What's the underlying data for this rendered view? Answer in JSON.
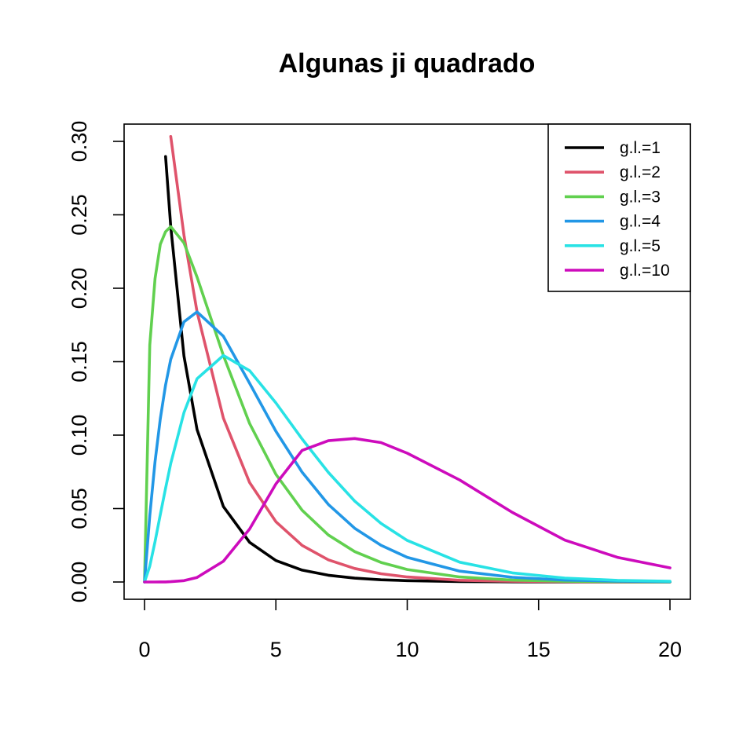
{
  "chart_data": {
    "type": "line",
    "title": "Algunas ji quadrado",
    "xlabel": "",
    "ylabel": "",
    "xlim": [
      0,
      20
    ],
    "ylim": [
      0,
      0.3
    ],
    "x_ticks": [
      0,
      5,
      10,
      15,
      20
    ],
    "x_tick_labels": [
      "0",
      "5",
      "10",
      "15",
      "20"
    ],
    "y_ticks": [
      0,
      0.05,
      0.1,
      0.15,
      0.2,
      0.25,
      0.3
    ],
    "y_tick_labels": [
      "0.00",
      "0.05",
      "0.10",
      "0.15",
      "0.20",
      "0.25",
      "0.30"
    ],
    "grid": false,
    "legend_position": "top-right",
    "x": [
      0,
      0.2,
      0.4,
      0.6,
      0.8,
      1,
      1.5,
      2,
      3,
      4,
      5,
      6,
      7,
      8,
      9,
      10,
      12,
      14,
      16,
      18,
      20
    ],
    "series": [
      {
        "name": "g.l.=1",
        "color": "#000000",
        "values": [
          null,
          null,
          null,
          null,
          0.2897,
          0.242,
          0.1539,
          0.1038,
          0.0514,
          0.027,
          0.0146,
          0.0081,
          0.0046,
          0.0026,
          0.0015,
          0.0009,
          0.0003,
          0.0001,
          4e-05,
          1e-05,
          4e-06
        ]
      },
      {
        "name": "g.l.=2",
        "color": "#DF536B",
        "values": [
          null,
          null,
          null,
          null,
          null,
          0.3033,
          0.2362,
          0.1839,
          0.1116,
          0.0677,
          0.041,
          0.0249,
          0.0151,
          0.0092,
          0.0056,
          0.0034,
          0.0012,
          0.0005,
          0.0002,
          6e-05,
          2e-05
        ]
      },
      {
        "name": "g.l.=3",
        "color": "#61D04F",
        "values": [
          0,
          0.1614,
          0.2066,
          0.2299,
          0.2385,
          0.242,
          0.2309,
          0.2076,
          0.1542,
          0.1079,
          0.0733,
          0.0488,
          0.032,
          0.0207,
          0.0133,
          0.0085,
          0.0034,
          0.0013,
          0.0005,
          0.0002,
          7e-05
        ]
      },
      {
        "name": "g.l.=4",
        "color": "#2297E6",
        "values": [
          0,
          0.0452,
          0.0819,
          0.1111,
          0.1341,
          0.1516,
          0.1771,
          0.1839,
          0.1673,
          0.1353,
          0.1026,
          0.0747,
          0.0528,
          0.0366,
          0.025,
          0.0168,
          0.0074,
          0.0032,
          0.0013,
          0.0006,
          0.0002
        ]
      },
      {
        "name": "g.l.=5",
        "color": "#28E2E5",
        "values": [
          0,
          0.0108,
          0.0275,
          0.0459,
          0.0638,
          0.0807,
          0.1153,
          0.1384,
          0.1542,
          0.1439,
          0.1219,
          0.0973,
          0.0746,
          0.0551,
          0.0399,
          0.0283,
          0.0135,
          0.0062,
          0.0027,
          0.0011,
          0.0005
        ]
      },
      {
        "name": "g.l.=10",
        "color": "#CD0BBC",
        "values": [
          0,
          0.0,
          1e-05,
          3e-05,
          8e-05,
          0.0002,
          0.0009,
          0.0031,
          0.0141,
          0.0361,
          0.0668,
          0.0896,
          0.0962,
          0.0977,
          0.0949,
          0.0877,
          0.0694,
          0.0474,
          0.0285,
          0.0168,
          0.0096
        ]
      }
    ]
  }
}
